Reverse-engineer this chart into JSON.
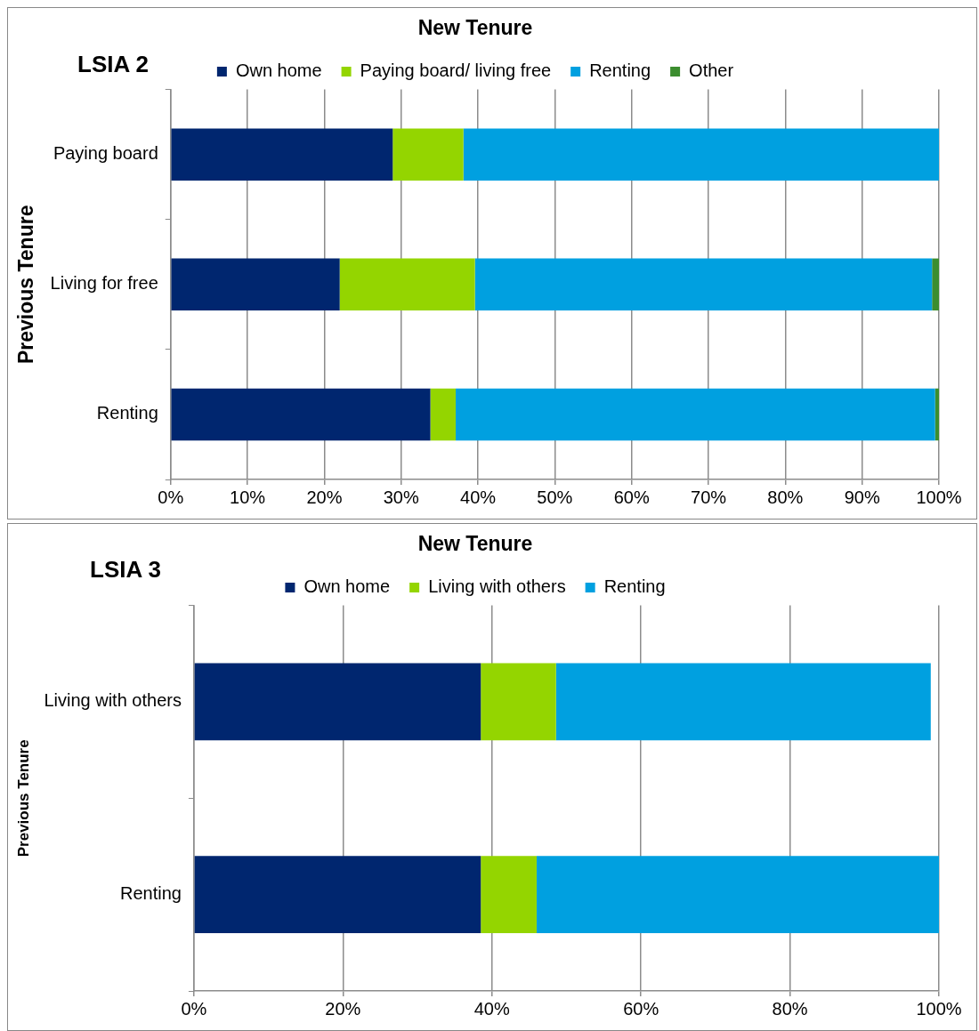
{
  "chart_data": [
    {
      "type": "bar",
      "orientation": "horizontal",
      "stacked": true,
      "title": "New Tenure",
      "ylabel": "Previous Tenure",
      "annotations": [
        "LSIA 2"
      ],
      "categories": [
        "Paying board",
        "Living for free",
        "Renting"
      ],
      "series": [
        {
          "name": "Own home",
          "color": "#00266f",
          "values": [
            28.9,
            22.0,
            33.8
          ]
        },
        {
          "name": "Paying board/ living free",
          "color": "#94d500",
          "values": [
            9.2,
            17.6,
            3.3
          ]
        },
        {
          "name": "Renting",
          "color": "#00a0e0",
          "values": [
            61.9,
            59.5,
            62.4
          ]
        },
        {
          "name": "Other",
          "color": "#3c8d2f",
          "values": [
            0,
            0.9,
            0.5
          ]
        }
      ],
      "xlim": [
        0,
        100
      ],
      "xticks": [
        {
          "value": 0,
          "label": "0%"
        },
        {
          "value": 10,
          "label": "10%"
        },
        {
          "value": 20,
          "label": "20%"
        },
        {
          "value": 30,
          "label": "30%"
        },
        {
          "value": 40,
          "label": "40%"
        },
        {
          "value": 50,
          "label": "50%"
        },
        {
          "value": 60,
          "label": "60%"
        },
        {
          "value": 70,
          "label": "70%"
        },
        {
          "value": 80,
          "label": "80%"
        },
        {
          "value": 90,
          "label": "90%"
        },
        {
          "value": 100,
          "label": "100%"
        }
      ],
      "grid": "x",
      "legend": "top"
    },
    {
      "type": "bar",
      "orientation": "horizontal",
      "stacked": true,
      "title": "New Tenure",
      "ylabel": "Previous Tenure",
      "annotations": [
        "LSIA 3"
      ],
      "categories": [
        "Living with others",
        "Renting"
      ],
      "series": [
        {
          "name": "Own home",
          "color": "#00266f",
          "values": [
            38.5,
            38.5
          ]
        },
        {
          "name": "Living with others",
          "color": "#94d500",
          "values": [
            10.1,
            7.5
          ]
        },
        {
          "name": "Renting",
          "color": "#00a0e0",
          "values": [
            50.3,
            54.0
          ]
        }
      ],
      "xlim": [
        0,
        100
      ],
      "xticks": [
        {
          "value": 0,
          "label": "0%"
        },
        {
          "value": 20,
          "label": "20%"
        },
        {
          "value": 40,
          "label": "40%"
        },
        {
          "value": 60,
          "label": "60%"
        },
        {
          "value": 80,
          "label": "80%"
        },
        {
          "value": 100,
          "label": "100%"
        }
      ],
      "grid": "x",
      "legend": "top"
    }
  ]
}
